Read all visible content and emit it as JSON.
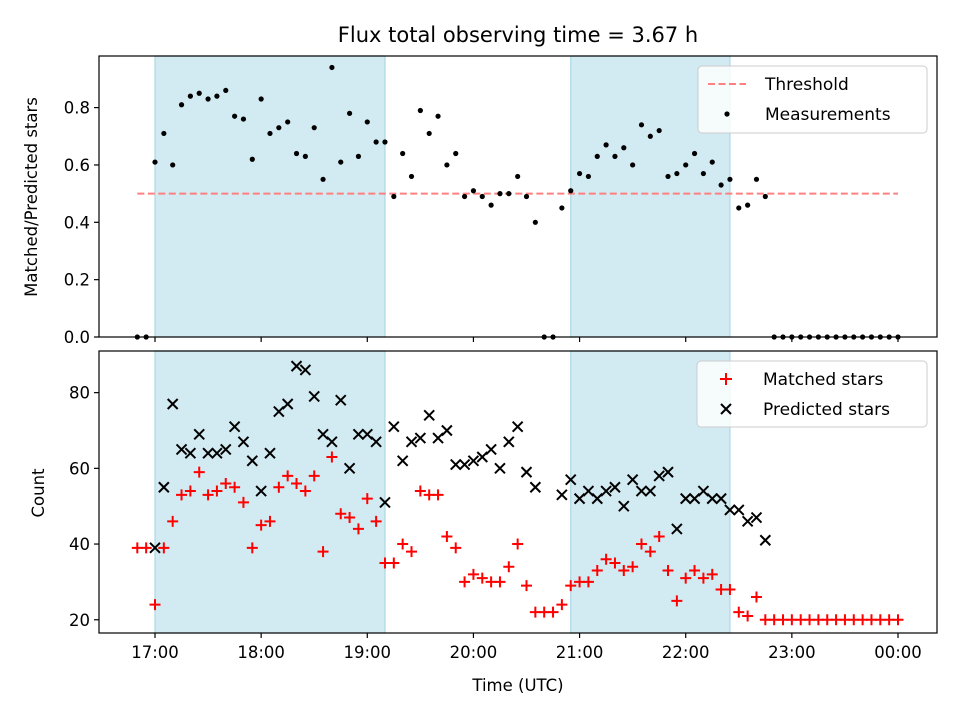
{
  "title": "Flux total observing time = 3.67 h",
  "colors": {
    "shade": "#add8e6",
    "threshold": "#ff8080",
    "measurement": "#000000",
    "matched": "#ff0000",
    "predicted": "#000000"
  },
  "chart_data": [
    {
      "type": "scatter",
      "ylabel": "Matched/Predicted stars",
      "ylim": [
        0,
        0.98
      ],
      "yticks": [
        0.0,
        0.2,
        0.4,
        0.6,
        0.8
      ],
      "ytick_labels": [
        "0.0",
        "0.2",
        "0.4",
        "0.6",
        "0.8"
      ],
      "shaded_intervals": [
        [
          "17:00",
          "19:10"
        ],
        [
          "20:55",
          "22:25"
        ]
      ],
      "legend": [
        "Threshold",
        "Measurements"
      ],
      "threshold": {
        "name": "Threshold",
        "value": 0.5,
        "x_range": [
          "16:50",
          "00:00"
        ]
      },
      "series": [
        {
          "name": "Measurements",
          "points": [
            [
              "16:50",
              0.0
            ],
            [
              "16:55",
              0.0
            ],
            [
              "17:00",
              0.61
            ],
            [
              "17:05",
              0.71
            ],
            [
              "17:10",
              0.6
            ],
            [
              "17:15",
              0.81
            ],
            [
              "17:20",
              0.84
            ],
            [
              "17:25",
              0.85
            ],
            [
              "17:30",
              0.83
            ],
            [
              "17:35",
              0.84
            ],
            [
              "17:40",
              0.86
            ],
            [
              "17:45",
              0.77
            ],
            [
              "17:50",
              0.76
            ],
            [
              "17:55",
              0.62
            ],
            [
              "18:00",
              0.83
            ],
            [
              "18:05",
              0.71
            ],
            [
              "18:10",
              0.73
            ],
            [
              "18:15",
              0.75
            ],
            [
              "18:20",
              0.64
            ],
            [
              "18:25",
              0.63
            ],
            [
              "18:30",
              0.73
            ],
            [
              "18:35",
              0.55
            ],
            [
              "18:40",
              0.94
            ],
            [
              "18:45",
              0.61
            ],
            [
              "18:50",
              0.78
            ],
            [
              "18:55",
              0.63
            ],
            [
              "19:00",
              0.75
            ],
            [
              "19:05",
              0.68
            ],
            [
              "19:10",
              0.68
            ],
            [
              "19:15",
              0.49
            ],
            [
              "19:20",
              0.64
            ],
            [
              "19:25",
              0.56
            ],
            [
              "19:30",
              0.79
            ],
            [
              "19:35",
              0.71
            ],
            [
              "19:40",
              0.77
            ],
            [
              "19:45",
              0.6
            ],
            [
              "19:50",
              0.64
            ],
            [
              "19:55",
              0.49
            ],
            [
              "20:00",
              0.51
            ],
            [
              "20:05",
              0.49
            ],
            [
              "20:10",
              0.46
            ],
            [
              "20:15",
              0.5
            ],
            [
              "20:20",
              0.5
            ],
            [
              "20:25",
              0.56
            ],
            [
              "20:30",
              0.49
            ],
            [
              "20:35",
              0.4
            ],
            [
              "20:40",
              0.0
            ],
            [
              "20:45",
              0.0
            ],
            [
              "20:50",
              0.45
            ],
            [
              "20:55",
              0.51
            ],
            [
              "21:00",
              0.57
            ],
            [
              "21:05",
              0.56
            ],
            [
              "21:10",
              0.63
            ],
            [
              "21:15",
              0.67
            ],
            [
              "21:20",
              0.63
            ],
            [
              "21:25",
              0.66
            ],
            [
              "21:30",
              0.6
            ],
            [
              "21:35",
              0.74
            ],
            [
              "21:40",
              0.7
            ],
            [
              "21:45",
              0.72
            ],
            [
              "21:50",
              0.56
            ],
            [
              "21:55",
              0.57
            ],
            [
              "22:00",
              0.6
            ],
            [
              "22:05",
              0.64
            ],
            [
              "22:10",
              0.57
            ],
            [
              "22:15",
              0.61
            ],
            [
              "22:20",
              0.53
            ],
            [
              "22:25",
              0.55
            ],
            [
              "22:30",
              0.45
            ],
            [
              "22:35",
              0.46
            ],
            [
              "22:40",
              0.55
            ],
            [
              "22:45",
              0.49
            ],
            [
              "22:50",
              0.0
            ],
            [
              "22:55",
              0.0
            ],
            [
              "23:00",
              0.0
            ],
            [
              "23:05",
              0.0
            ],
            [
              "23:10",
              0.0
            ],
            [
              "23:15",
              0.0
            ],
            [
              "23:20",
              0.0
            ],
            [
              "23:25",
              0.0
            ],
            [
              "23:30",
              0.0
            ],
            [
              "23:35",
              0.0
            ],
            [
              "23:40",
              0.0
            ],
            [
              "23:45",
              0.0
            ],
            [
              "23:50",
              0.0
            ],
            [
              "23:55",
              0.0
            ],
            [
              "00:00",
              0.0
            ]
          ]
        }
      ]
    },
    {
      "type": "scatter",
      "xlabel": "Time (UTC)",
      "ylabel": "Count",
      "ylim": [
        16.5,
        91
      ],
      "yticks": [
        20,
        40,
        60,
        80
      ],
      "ytick_labels": [
        "20",
        "40",
        "60",
        "80"
      ],
      "xticks": [
        "17:00",
        "18:00",
        "19:00",
        "20:00",
        "21:00",
        "22:00",
        "23:00",
        "00:00"
      ],
      "shaded_intervals": [
        [
          "17:00",
          "19:10"
        ],
        [
          "20:55",
          "22:25"
        ]
      ],
      "legend": [
        "Matched stars",
        "Predicted stars"
      ],
      "series": [
        {
          "name": "Matched stars",
          "points": [
            [
              "16:50",
              39
            ],
            [
              "16:55",
              39
            ],
            [
              "17:00",
              24
            ],
            [
              "17:05",
              39
            ],
            [
              "17:10",
              46
            ],
            [
              "17:15",
              53
            ],
            [
              "17:20",
              54
            ],
            [
              "17:25",
              59
            ],
            [
              "17:30",
              53
            ],
            [
              "17:35",
              54
            ],
            [
              "17:40",
              56
            ],
            [
              "17:45",
              55
            ],
            [
              "17:50",
              51
            ],
            [
              "17:55",
              39
            ],
            [
              "18:00",
              45
            ],
            [
              "18:05",
              46
            ],
            [
              "18:10",
              55
            ],
            [
              "18:15",
              58
            ],
            [
              "18:20",
              56
            ],
            [
              "18:25",
              54
            ],
            [
              "18:30",
              58
            ],
            [
              "18:35",
              38
            ],
            [
              "18:40",
              63
            ],
            [
              "18:45",
              48
            ],
            [
              "18:50",
              47
            ],
            [
              "18:55",
              44
            ],
            [
              "19:00",
              52
            ],
            [
              "19:05",
              46
            ],
            [
              "19:10",
              35
            ],
            [
              "19:15",
              35
            ],
            [
              "19:20",
              40
            ],
            [
              "19:25",
              38
            ],
            [
              "19:30",
              54
            ],
            [
              "19:35",
              53
            ],
            [
              "19:40",
              53
            ],
            [
              "19:45",
              42
            ],
            [
              "19:50",
              39
            ],
            [
              "19:55",
              30
            ],
            [
              "20:00",
              32
            ],
            [
              "20:05",
              31
            ],
            [
              "20:10",
              30
            ],
            [
              "20:15",
              30
            ],
            [
              "20:20",
              34
            ],
            [
              "20:25",
              40
            ],
            [
              "20:30",
              29
            ],
            [
              "20:35",
              22
            ],
            [
              "20:40",
              22
            ],
            [
              "20:45",
              22
            ],
            [
              "20:50",
              24
            ],
            [
              "20:55",
              29
            ],
            [
              "21:00",
              30
            ],
            [
              "21:05",
              30
            ],
            [
              "21:10",
              33
            ],
            [
              "21:15",
              36
            ],
            [
              "21:20",
              35
            ],
            [
              "21:25",
              33
            ],
            [
              "21:30",
              34
            ],
            [
              "21:35",
              40
            ],
            [
              "21:40",
              38
            ],
            [
              "21:45",
              42
            ],
            [
              "21:50",
              33
            ],
            [
              "21:55",
              25
            ],
            [
              "22:00",
              31
            ],
            [
              "22:05",
              33
            ],
            [
              "22:10",
              31
            ],
            [
              "22:15",
              32
            ],
            [
              "22:20",
              28
            ],
            [
              "22:25",
              28
            ],
            [
              "22:30",
              22
            ],
            [
              "22:35",
              21
            ],
            [
              "22:40",
              26
            ],
            [
              "22:45",
              20
            ],
            [
              "22:50",
              20
            ],
            [
              "22:55",
              20
            ],
            [
              "23:00",
              20
            ],
            [
              "23:05",
              20
            ],
            [
              "23:10",
              20
            ],
            [
              "23:15",
              20
            ],
            [
              "23:20",
              20
            ],
            [
              "23:25",
              20
            ],
            [
              "23:30",
              20
            ],
            [
              "23:35",
              20
            ],
            [
              "23:40",
              20
            ],
            [
              "23:45",
              20
            ],
            [
              "23:50",
              20
            ],
            [
              "23:55",
              20
            ],
            [
              "00:00",
              20
            ]
          ]
        },
        {
          "name": "Predicted stars",
          "points": [
            [
              "17:00",
              39
            ],
            [
              "17:05",
              55
            ],
            [
              "17:10",
              77
            ],
            [
              "17:15",
              65
            ],
            [
              "17:20",
              64
            ],
            [
              "17:25",
              69
            ],
            [
              "17:30",
              64
            ],
            [
              "17:35",
              64
            ],
            [
              "17:40",
              65
            ],
            [
              "17:45",
              71
            ],
            [
              "17:50",
              67
            ],
            [
              "17:55",
              62
            ],
            [
              "18:00",
              54
            ],
            [
              "18:05",
              64
            ],
            [
              "18:10",
              75
            ],
            [
              "18:15",
              77
            ],
            [
              "18:20",
              87
            ],
            [
              "18:25",
              86
            ],
            [
              "18:30",
              79
            ],
            [
              "18:35",
              69
            ],
            [
              "18:40",
              67
            ],
            [
              "18:45",
              78
            ],
            [
              "18:50",
              60
            ],
            [
              "18:55",
              69
            ],
            [
              "19:00",
              69
            ],
            [
              "19:05",
              67
            ],
            [
              "19:10",
              51
            ],
            [
              "19:15",
              71
            ],
            [
              "19:20",
              62
            ],
            [
              "19:25",
              67
            ],
            [
              "19:30",
              68
            ],
            [
              "19:35",
              74
            ],
            [
              "19:40",
              68
            ],
            [
              "19:45",
              70
            ],
            [
              "19:50",
              61
            ],
            [
              "19:55",
              61
            ],
            [
              "20:00",
              62
            ],
            [
              "20:05",
              63
            ],
            [
              "20:10",
              65
            ],
            [
              "20:15",
              60
            ],
            [
              "20:20",
              67
            ],
            [
              "20:25",
              71
            ],
            [
              "20:30",
              59
            ],
            [
              "20:35",
              55
            ],
            [
              "20:50",
              53
            ],
            [
              "20:55",
              57
            ],
            [
              "21:00",
              52
            ],
            [
              "21:05",
              54
            ],
            [
              "21:10",
              52
            ],
            [
              "21:15",
              54
            ],
            [
              "21:20",
              55
            ],
            [
              "21:25",
              50
            ],
            [
              "21:30",
              57
            ],
            [
              "21:35",
              54
            ],
            [
              "21:40",
              54
            ],
            [
              "21:45",
              58
            ],
            [
              "21:50",
              59
            ],
            [
              "21:55",
              44
            ],
            [
              "22:00",
              52
            ],
            [
              "22:05",
              52
            ],
            [
              "22:10",
              54
            ],
            [
              "22:15",
              52
            ],
            [
              "22:20",
              52
            ],
            [
              "22:25",
              49
            ],
            [
              "22:30",
              49
            ],
            [
              "22:35",
              46
            ],
            [
              "22:40",
              47
            ],
            [
              "22:45",
              41
            ]
          ]
        }
      ]
    }
  ]
}
